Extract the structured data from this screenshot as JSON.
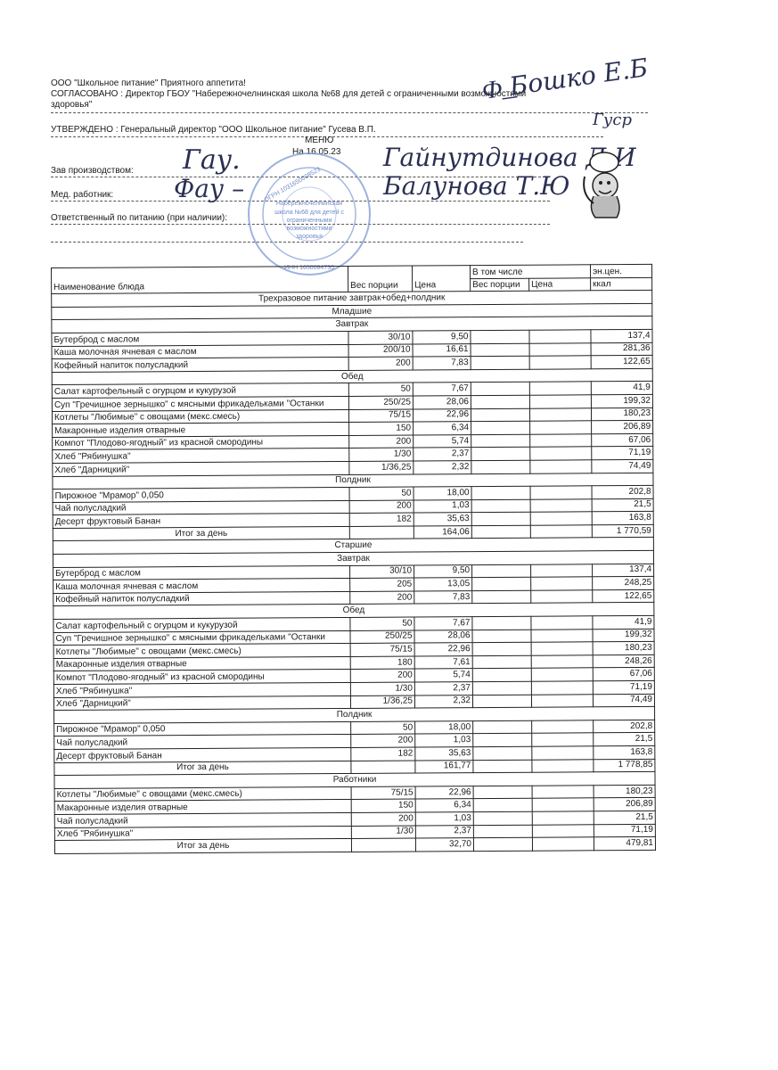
{
  "header": {
    "line1": "ООО \"Школьное питание\" Приятного аппетита!",
    "line2": "СОГЛАСОВАНО : Директор ГБОУ \"Набережночелнинская школа №68 для детей с ограниченными возможностями",
    "line3": "здоровья\"",
    "approved": "УТВЕРЖДЕНО : Генеральный директор \"ООО Школьное питание\" Гусева В.П.",
    "menu_title": "МЕНЮ",
    "menu_date": "На 16.05.23",
    "production_head_label": "Зав производством:",
    "medic_label": "Мед. работник:",
    "responsible_label": "Ответственный по питанию (при наличии):"
  },
  "signatures": {
    "director": "Бошко Е.Б",
    "general_director": "Гуср",
    "production_head": "Гайнутдинова Д.И",
    "medic": "Балунова Т.Ю"
  },
  "stamp": {
    "text": "Набережночелнинская школа №68 для детей с ограниченными возможностями здоровья",
    "ogrn": "ОГРН 1031650008523",
    "inn": "ИНН 1650084730",
    "color": "#5d7fc4"
  },
  "table": {
    "headers": {
      "name": "Наименование блюда",
      "weight": "Вес порции",
      "price": "Цена",
      "including": "В том числе",
      "sub_weight": "Вес порции",
      "sub_price": "Цена",
      "energy1": "эн.цен.",
      "energy2": "ккал"
    },
    "rows": [
      {
        "type": "section",
        "label": "Трехразовое питание завтрак+обед+полдник"
      },
      {
        "type": "section",
        "label": "Младшие"
      },
      {
        "type": "section",
        "label": "Завтрак"
      },
      {
        "type": "item",
        "name": "Бутерброд с маслом",
        "weight": "30/10",
        "price": "9,50",
        "kcal": "137,4"
      },
      {
        "type": "item",
        "name": "Каша молочная ячневая с маслом",
        "weight": "200/10",
        "price": "16,61",
        "kcal": "281,36"
      },
      {
        "type": "item",
        "name": "Кофейный напиток полусладкий",
        "weight": "200",
        "price": "7,83",
        "kcal": "122,65"
      },
      {
        "type": "section",
        "label": "Обед"
      },
      {
        "type": "item",
        "name": "Салат картофельный с огурцом и кукурузой",
        "weight": "50",
        "price": "7,67",
        "kcal": "41,9"
      },
      {
        "type": "item",
        "name": "Суп \"Гречишное зернышко\" с мясными фрикадельками \"Останки",
        "weight": "250/25",
        "price": "28,06",
        "kcal": "199,32"
      },
      {
        "type": "item",
        "name": "Котлеты \"Любимые\" с овощами (мекс.смесь)",
        "weight": "75/15",
        "price": "22,96",
        "kcal": "180,23"
      },
      {
        "type": "item",
        "name": "Макаронные изделия отварные",
        "weight": "150",
        "price": "6,34",
        "kcal": "206,89"
      },
      {
        "type": "item",
        "name": "Компот \"Плодово-ягодный\" из красной смородины",
        "weight": "200",
        "price": "5,74",
        "kcal": "67,06"
      },
      {
        "type": "item",
        "name": "Хлеб \"Рябинушка\"",
        "weight": "1/30",
        "price": "2,37",
        "kcal": "71,19"
      },
      {
        "type": "item",
        "name": "Хлеб \"Дарницкий\"",
        "weight": "1/36,25",
        "price": "2,32",
        "kcal": "74,49"
      },
      {
        "type": "section",
        "label": "Полдник"
      },
      {
        "type": "item",
        "name": "Пирожное \"Мрамор\" 0,050",
        "weight": "50",
        "price": "18,00",
        "kcal": "202,8"
      },
      {
        "type": "item",
        "name": "Чай полусладкий",
        "weight": "200",
        "price": "1,03",
        "kcal": "21,5"
      },
      {
        "type": "item",
        "name": "Десерт фруктовый Банан",
        "weight": "182",
        "price": "35,63",
        "kcal": "163,8"
      },
      {
        "type": "total",
        "label": "Итог за день",
        "price": "164,06",
        "kcal": "1 770,59"
      },
      {
        "type": "section",
        "label": "Старшие"
      },
      {
        "type": "section",
        "label": "Завтрак"
      },
      {
        "type": "item",
        "name": "Бутерброд с маслом",
        "weight": "30/10",
        "price": "9,50",
        "kcal": "137,4"
      },
      {
        "type": "item",
        "name": "Каша молочная ячневая с маслом",
        "weight": "205",
        "price": "13,05",
        "kcal": "248,25"
      },
      {
        "type": "item",
        "name": "Кофейный напиток полусладкий",
        "weight": "200",
        "price": "7,83",
        "kcal": "122,65"
      },
      {
        "type": "section",
        "label": "Обед"
      },
      {
        "type": "item",
        "name": "Салат картофельный с огурцом и кукурузой",
        "weight": "50",
        "price": "7,67",
        "kcal": "41,9"
      },
      {
        "type": "item",
        "name": "Суп \"Гречишное зернышко\" с мясными фрикадельками \"Останки",
        "weight": "250/25",
        "price": "28,06",
        "kcal": "199,32"
      },
      {
        "type": "item",
        "name": "Котлеты \"Любимые\" с овощами (мекс.смесь)",
        "weight": "75/15",
        "price": "22,96",
        "kcal": "180,23"
      },
      {
        "type": "item",
        "name": "Макаронные изделия отварные",
        "weight": "180",
        "price": "7,61",
        "kcal": "248,26"
      },
      {
        "type": "item",
        "name": "Компот \"Плодово-ягодный\" из красной смородины",
        "weight": "200",
        "price": "5,74",
        "kcal": "67,06"
      },
      {
        "type": "item",
        "name": "Хлеб \"Рябинушка\"",
        "weight": "1/30",
        "price": "2,37",
        "kcal": "71,19"
      },
      {
        "type": "item",
        "name": "Хлеб \"Дарницкий\"",
        "weight": "1/36,25",
        "price": "2,32",
        "kcal": "74,49"
      },
      {
        "type": "section",
        "label": "Полдник"
      },
      {
        "type": "item",
        "name": "Пирожное \"Мрамор\" 0,050",
        "weight": "50",
        "price": "18,00",
        "kcal": "202,8"
      },
      {
        "type": "item",
        "name": "Чай полусладкий",
        "weight": "200",
        "price": "1,03",
        "kcal": "21,5"
      },
      {
        "type": "item",
        "name": "Десерт фруктовый Банан",
        "weight": "182",
        "price": "35,63",
        "kcal": "163,8"
      },
      {
        "type": "total",
        "label": "Итог за день",
        "price": "161,77",
        "kcal": "1 778,85"
      },
      {
        "type": "section",
        "label": "Работники"
      },
      {
        "type": "item",
        "name": "Котлеты \"Любимые\" с овощами (мекс.смесь)",
        "weight": "75/15",
        "price": "22,96",
        "kcal": "180,23"
      },
      {
        "type": "item",
        "name": "Макаронные изделия отварные",
        "weight": "150",
        "price": "6,34",
        "kcal": "206,89"
      },
      {
        "type": "item",
        "name": "Чай полусладкий",
        "weight": "200",
        "price": "1,03",
        "kcal": "21,5"
      },
      {
        "type": "item",
        "name": "Хлеб \"Рябинушка\"",
        "weight": "1/30",
        "price": "2,37",
        "kcal": "71,19"
      },
      {
        "type": "total",
        "label": "Итог за день",
        "price": "32,70",
        "kcal": "479,81"
      }
    ]
  }
}
